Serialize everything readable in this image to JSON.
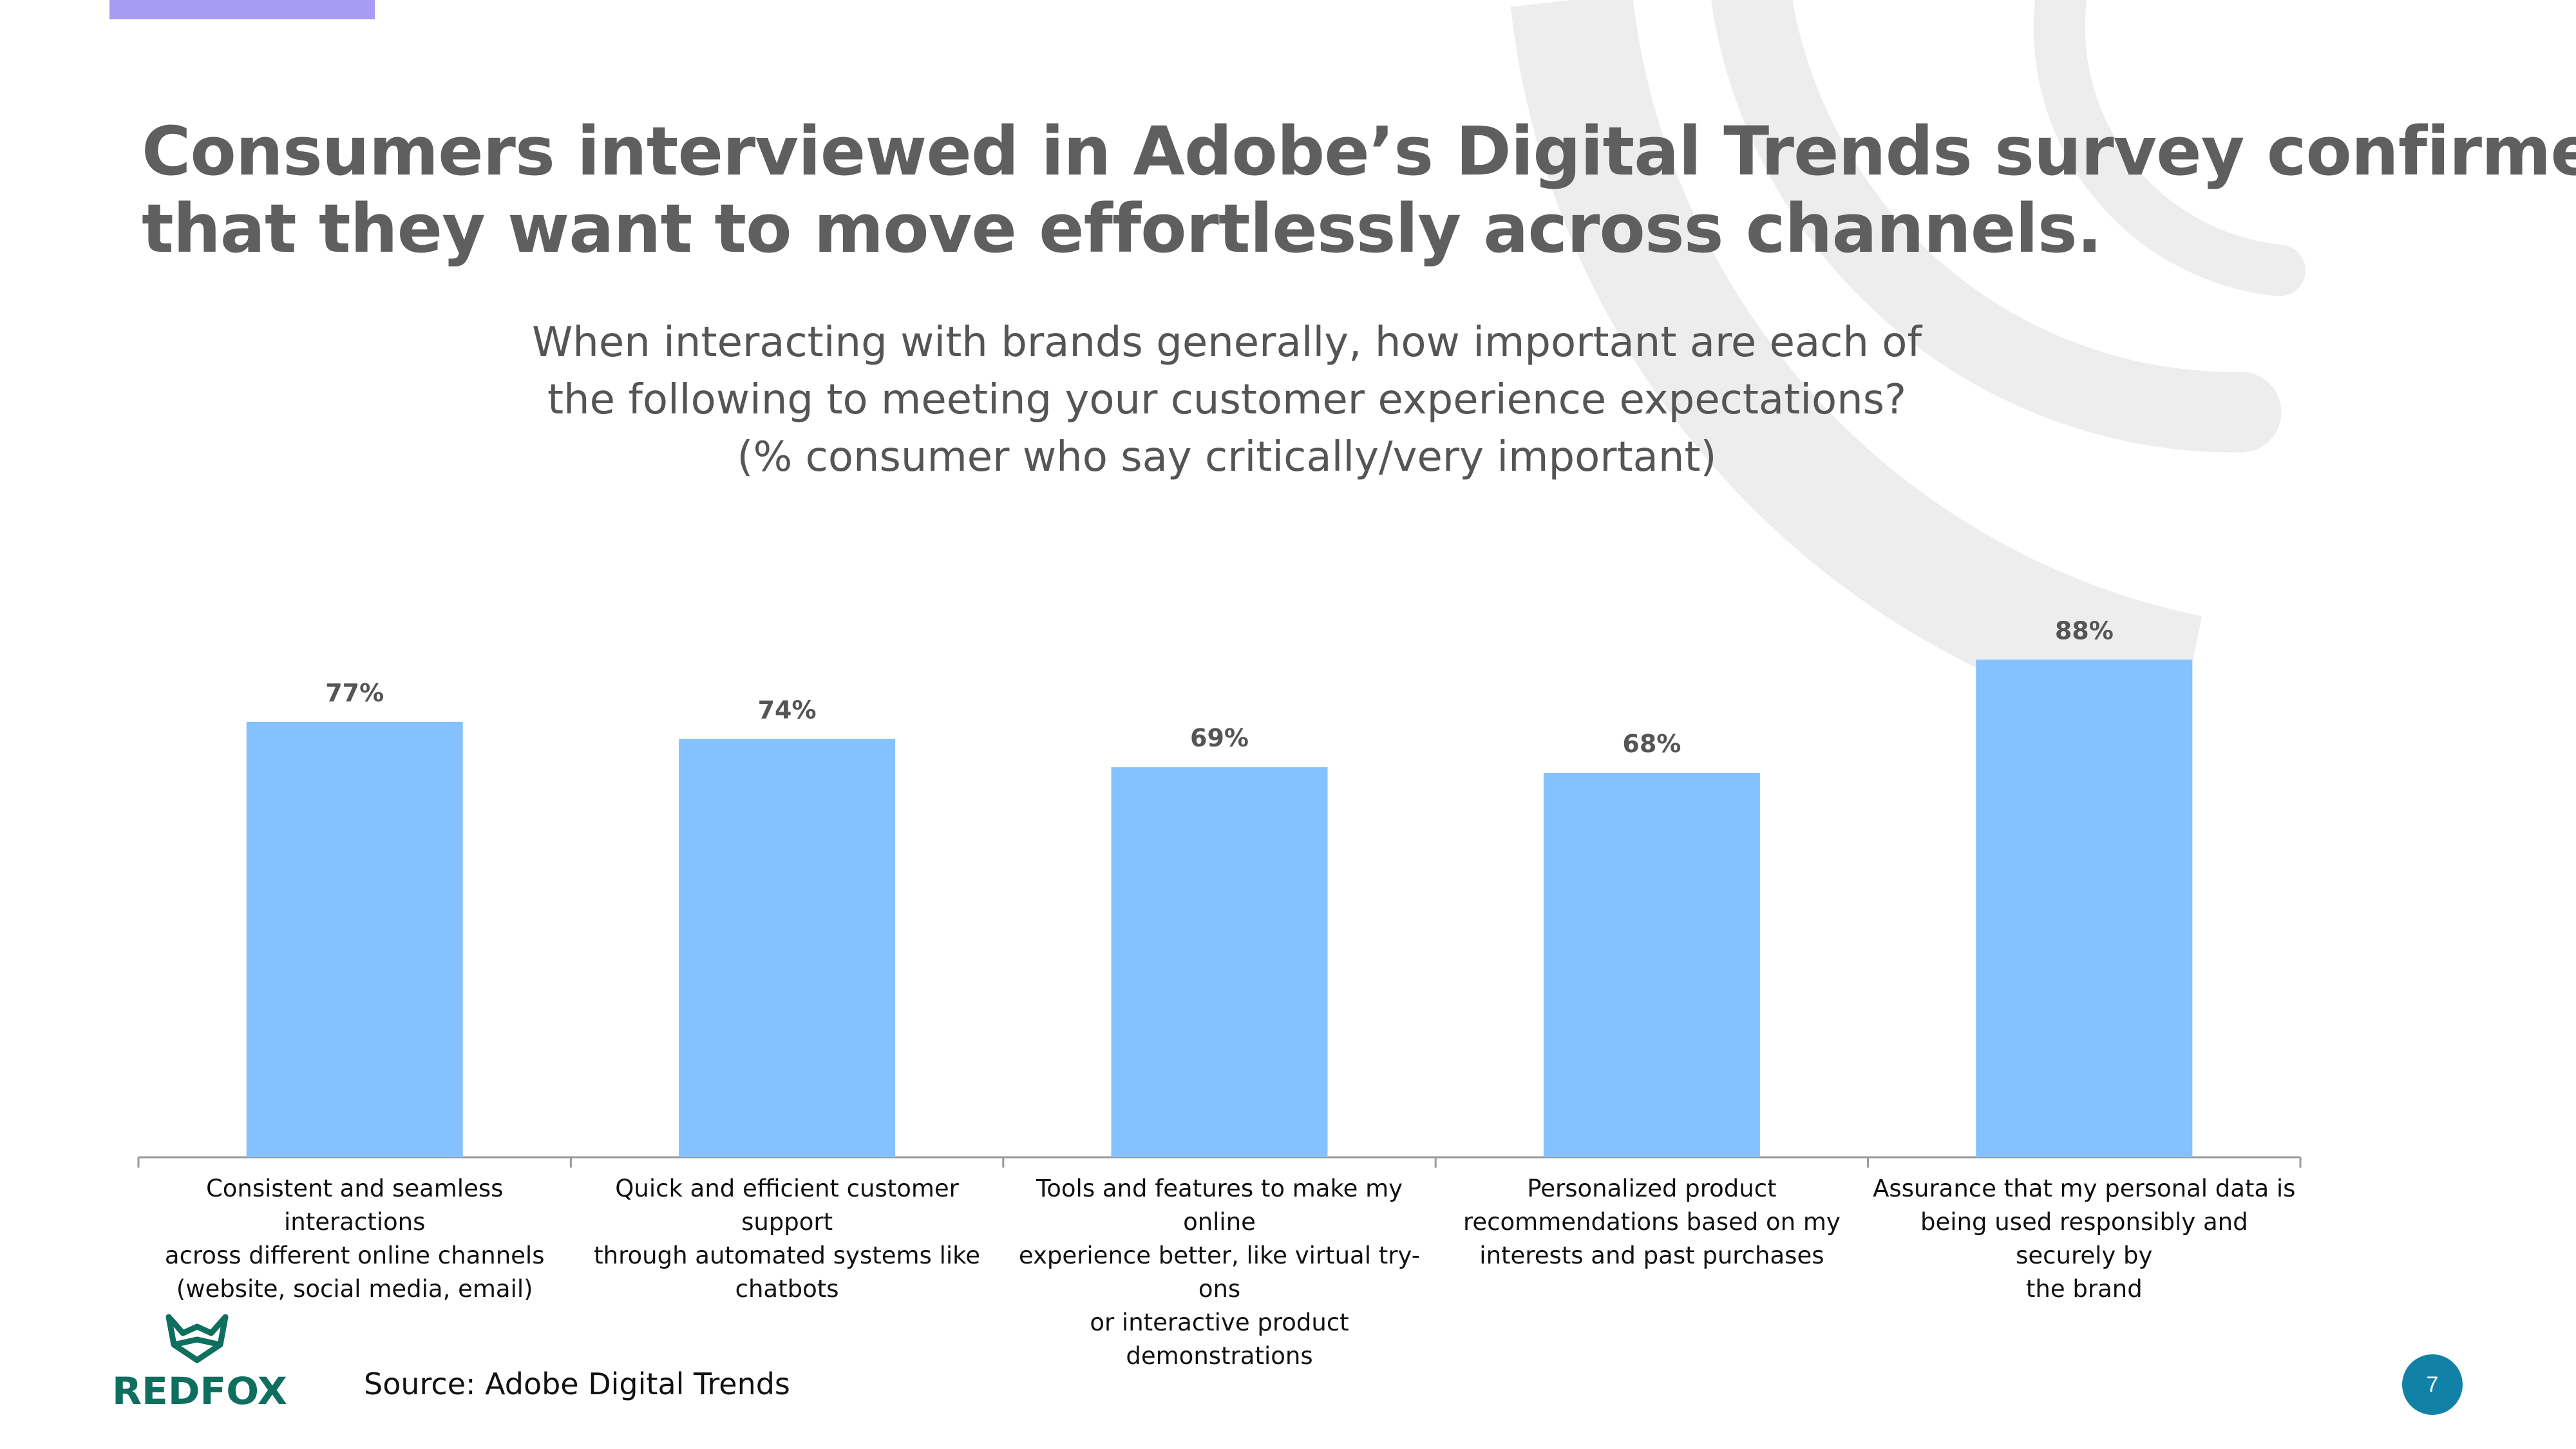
{
  "slide": {
    "title_lines": [
      "Consumers interviewed in Adobe’s Digital Trends survey confirmed",
      "that they want to move effortlessly across channels."
    ],
    "subtitle_lines": [
      "When interacting with brands generally, how important are each of",
      "the following to meeting your customer experience expectations?",
      "(% consumer who say critically/very important)"
    ],
    "source": "Source:  Adobe Digital Trends",
    "page_number": "7",
    "logo_text": "REDFOX"
  },
  "colors": {
    "bar": "#85c1fe",
    "title": "#5f5f5f",
    "accent": "#a79bf5",
    "logo": "#0f6f5e",
    "page_badge": "#1181a8",
    "background_swirl": "#ededed"
  },
  "chart_data": {
    "type": "bar",
    "categories": [
      [
        "Consistent and seamless interactions",
        "across different online channels",
        "(website, social media, email)"
      ],
      [
        "Quick and efficient customer support",
        "through automated systems like",
        "chatbots"
      ],
      [
        "Tools and features to make my online",
        "experience better, like virtual try-ons",
        "or interactive product demonstrations"
      ],
      [
        "Personalized product",
        "recommendations based on my",
        "interests and past purchases"
      ],
      [
        "Assurance that my personal data is",
        "being used responsibly and securely by",
        "the brand"
      ]
    ],
    "values": [
      77,
      74,
      69,
      68,
      88
    ],
    "data_labels": [
      "77%",
      "74%",
      "69%",
      "68%",
      "88%"
    ],
    "ylim": [
      0,
      100
    ],
    "grid": false,
    "legend": "none"
  }
}
